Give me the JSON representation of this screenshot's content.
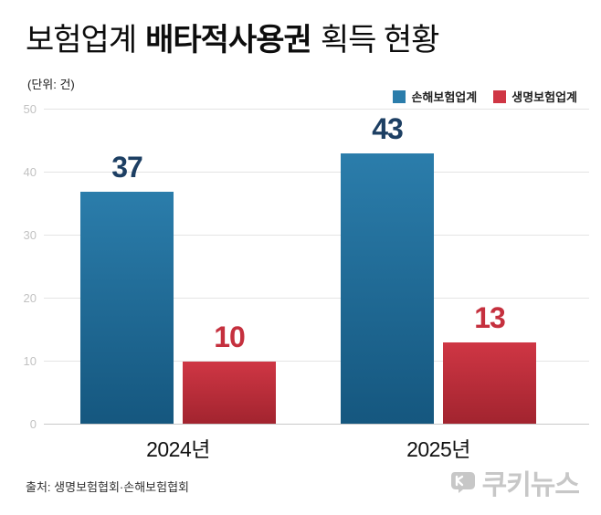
{
  "header": {
    "title_parts": [
      "보험업계",
      "배타적사용권",
      "획득 현황"
    ],
    "unit_label": "(단위: 건)"
  },
  "chart_data": {
    "type": "bar",
    "categories": [
      "2024년",
      "2025년"
    ],
    "series": [
      {
        "name": "손해보험업계",
        "values": [
          37,
          43
        ],
        "color_top": "#2b7dab",
        "color_bottom": "#15577f",
        "label_color": "#1d3f63"
      },
      {
        "name": "생명보험업계",
        "values": [
          10,
          13
        ],
        "color_top": "#cf3644",
        "color_bottom": "#a2242f",
        "label_color": "#c5303e"
      }
    ],
    "title": "보험업계 배타적사용권 획득 현황",
    "xlabel": "",
    "ylabel": "",
    "ylim": [
      0,
      50
    ],
    "yticks": [
      0,
      10,
      20,
      30,
      40,
      50
    ],
    "grid": true,
    "legend_position": "top-right"
  },
  "footer": {
    "source": "출처: 생명보험협회·손해보험협회",
    "watermark": "쿠키뉴스"
  }
}
